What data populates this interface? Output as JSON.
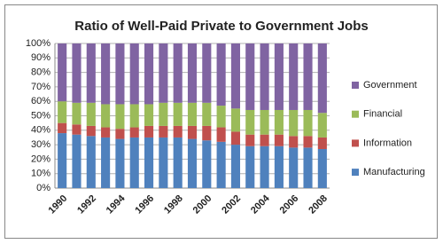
{
  "chart_data": {
    "type": "stacked_bar_100",
    "title": "Ratio of Well-Paid Private to Government Jobs",
    "categories": [
      "1990",
      null,
      "1992",
      null,
      "1994",
      null,
      "1996",
      null,
      "1998",
      null,
      "2000",
      null,
      "2002",
      null,
      "2004",
      null,
      "2006",
      null,
      "2008"
    ],
    "series": [
      {
        "name": "Manufacturing",
        "color": "#4f81bd",
        "values": [
          38,
          37,
          36,
          35,
          34,
          35,
          35,
          35,
          35,
          34,
          33,
          32,
          30,
          29,
          29,
          29,
          28,
          28,
          27
        ]
      },
      {
        "name": "Information",
        "color": "#c0504d",
        "values": [
          7,
          7,
          7,
          7,
          7,
          7,
          8,
          8,
          8,
          9,
          10,
          10,
          9,
          8,
          8,
          8,
          8,
          8,
          8
        ]
      },
      {
        "name": "Financial",
        "color": "#9bbb59",
        "values": [
          15,
          15,
          16,
          16,
          17,
          16,
          15,
          16,
          16,
          16,
          16,
          15,
          16,
          17,
          17,
          17,
          18,
          18,
          17
        ]
      },
      {
        "name": "Government",
        "color": "#8064a2",
        "values": [
          40,
          41,
          41,
          42,
          42,
          42,
          42,
          41,
          41,
          41,
          41,
          43,
          45,
          46,
          46,
          46,
          46,
          46,
          48
        ]
      }
    ],
    "ylim": [
      0,
      100
    ],
    "yticks": [
      {
        "value": 0,
        "label": "0%"
      },
      {
        "value": 10,
        "label": "10%"
      },
      {
        "value": 20,
        "label": "20%"
      },
      {
        "value": 30,
        "label": "30%"
      },
      {
        "value": 40,
        "label": "40%"
      },
      {
        "value": 50,
        "label": "50%"
      },
      {
        "value": 60,
        "label": "60%"
      },
      {
        "value": 70,
        "label": "70%"
      },
      {
        "value": 80,
        "label": "80%"
      },
      {
        "value": 90,
        "label": "90%"
      },
      {
        "value": 100,
        "label": "100%"
      }
    ],
    "grid": true,
    "legend": "right"
  }
}
